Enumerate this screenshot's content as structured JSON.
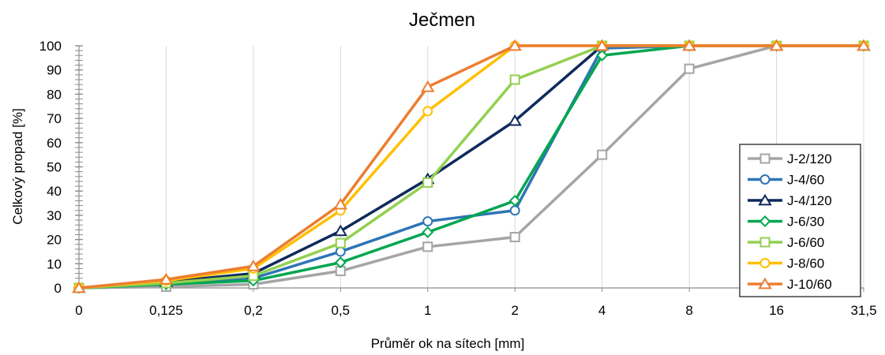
{
  "chart_data": {
    "type": "line",
    "title": "Ječmen",
    "xlabel": "Průměr ok na sítech [mm]",
    "ylabel": "Celkový propad [%]",
    "categories": [
      "0",
      "0,125",
      "0,2",
      "0,5",
      "1",
      "2",
      "4",
      "8",
      "16",
      "31,5"
    ],
    "ylim": [
      0,
      100
    ],
    "yticks": [
      0,
      10,
      20,
      30,
      40,
      50,
      60,
      70,
      80,
      90,
      100
    ],
    "grid": "vertical",
    "legend_position": "right",
    "series": [
      {
        "name": "J-2/120",
        "color": "#a5a5a5",
        "marker": "square",
        "values": [
          0,
          0.5,
          1.5,
          7,
          17,
          21,
          55,
          90.5,
          100,
          100
        ]
      },
      {
        "name": "J-4/60",
        "color": "#2e75b6",
        "marker": "circle",
        "values": [
          0,
          2,
          4,
          15,
          27.5,
          32,
          99,
          100,
          100,
          100
        ]
      },
      {
        "name": "J-4/120",
        "color": "#0e2a5c",
        "marker": "triangle",
        "values": [
          0,
          2.5,
          6,
          23.5,
          45,
          69,
          100,
          100,
          100,
          100
        ]
      },
      {
        "name": "J-6/30",
        "color": "#00a650",
        "marker": "diamond",
        "values": [
          0,
          1.5,
          3,
          10.5,
          23,
          36,
          96,
          100,
          100,
          100
        ]
      },
      {
        "name": "J-6/60",
        "color": "#92d050",
        "marker": "square",
        "values": [
          0,
          2,
          5,
          18.5,
          43.5,
          86,
          100,
          100,
          100,
          100
        ]
      },
      {
        "name": "J-8/60",
        "color": "#ffc000",
        "marker": "circle",
        "values": [
          0,
          3,
          8,
          32,
          73,
          100,
          100,
          100,
          100,
          100
        ]
      },
      {
        "name": "J-10/60",
        "color": "#ed7d31",
        "marker": "triangle",
        "values": [
          0,
          3.5,
          9,
          34.5,
          83,
          100,
          100,
          100,
          100,
          100
        ]
      }
    ]
  }
}
